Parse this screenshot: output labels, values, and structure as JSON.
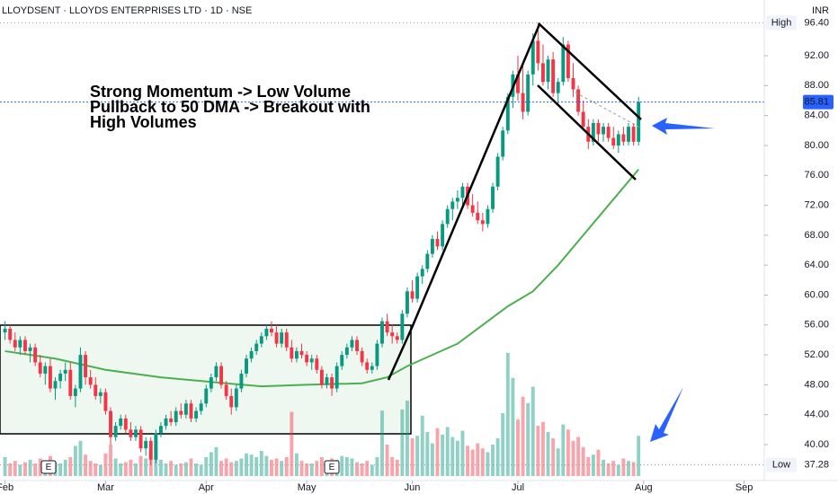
{
  "chart_data": {
    "type": "candlestick",
    "title": "LLOYDSENT · LLOYDS ENTERPRISES LTD · 1D · NSE",
    "currency": "INR",
    "annotation": [
      "Strong Momentum -> Low Volume",
      "Pullback to 50 DMA -> Breakout with",
      "High Volumes"
    ],
    "earnings": [
      "E",
      "E"
    ],
    "up_color": "#089981",
    "down_color": "#f23645",
    "ma_color": "#4caf50",
    "xlim": [
      -1,
      151
    ],
    "xticks": [
      {
        "value": 0,
        "label": "Feb"
      },
      {
        "value": 20,
        "label": "Mar"
      },
      {
        "value": 40,
        "label": "Apr"
      },
      {
        "value": 60,
        "label": "May"
      },
      {
        "value": 81,
        "label": "Jun"
      },
      {
        "value": 102,
        "label": "Jul"
      },
      {
        "value": 127,
        "label": "Aug"
      },
      {
        "value": 147,
        "label": "Sep"
      }
    ],
    "ylim": [
      35.2,
      99.45
    ],
    "yticks": [
      {
        "value": 40,
        "label": "40.00"
      },
      {
        "value": 44,
        "label": "44.00"
      },
      {
        "value": 48,
        "label": "48.00"
      },
      {
        "value": 52,
        "label": "52.00"
      },
      {
        "value": 56,
        "label": "56.00"
      },
      {
        "value": 60,
        "label": "60.00"
      },
      {
        "value": 64,
        "label": "64.00"
      },
      {
        "value": 68,
        "label": "68.00"
      },
      {
        "value": 72,
        "label": "72.00"
      },
      {
        "value": 76,
        "label": "76.00"
      },
      {
        "value": 80,
        "label": "80.00"
      },
      {
        "value": 84,
        "label": "84.00"
      },
      {
        "value": 88,
        "label": "88.00"
      },
      {
        "value": 92,
        "label": "92.00"
      }
    ],
    "grid": false,
    "price_tags": [
      {
        "name": "High",
        "value": 96.4,
        "label": "96.40"
      },
      {
        "value": 85.81,
        "label": "85.81"
      },
      {
        "name": "Low",
        "value": 37.28,
        "label": "37.28"
      }
    ],
    "volume_lim": [
      0,
      10
    ],
    "candles": [
      [
        55,
        56.5,
        54,
        55.5
      ],
      [
        55.5,
        56,
        53.5,
        54
      ],
      [
        54,
        55,
        52.5,
        53
      ],
      [
        53,
        54.5,
        52,
        54
      ],
      [
        54,
        54.5,
        52,
        52.5
      ],
      [
        52.5,
        53.5,
        51,
        53
      ],
      [
        53,
        53.5,
        50.5,
        51
      ],
      [
        51,
        52,
        49,
        49.5
      ],
      [
        49.5,
        51,
        48,
        50.5
      ],
      [
        50.5,
        51.5,
        47,
        47.5
      ],
      [
        47.5,
        49,
        46,
        48.5
      ],
      [
        48.5,
        50,
        47.5,
        49.5
      ],
      [
        49.5,
        51,
        48.5,
        50
      ],
      [
        50,
        51,
        46,
        46.5
      ],
      [
        46.5,
        48,
        45,
        47.5
      ],
      [
        47.5,
        53,
        47,
        52
      ],
      [
        52,
        52.5,
        48,
        49
      ],
      [
        49,
        50,
        47.5,
        48
      ],
      [
        48,
        49,
        46,
        46.5
      ],
      [
        46.5,
        47.5,
        45.5,
        47
      ],
      [
        47,
        47.5,
        44,
        44.5
      ],
      [
        44.5,
        45,
        40,
        41
      ],
      [
        41,
        43,
        40.5,
        42.5
      ],
      [
        42.5,
        44,
        42,
        43.5
      ],
      [
        43.5,
        44,
        41.5,
        42
      ],
      [
        42,
        43,
        40.5,
        41
      ],
      [
        41,
        42.5,
        40.5,
        42
      ],
      [
        42,
        42.5,
        39,
        39.5
      ],
      [
        39.5,
        41,
        38.5,
        40.5
      ],
      [
        40.5,
        41,
        37.28,
        38
      ],
      [
        38,
        42,
        37.5,
        41.5
      ],
      [
        41.5,
        43,
        41,
        42.5
      ],
      [
        42.5,
        44,
        42,
        43.5
      ],
      [
        43.5,
        44.5,
        42.5,
        43
      ],
      [
        43,
        45,
        42.5,
        44.5
      ],
      [
        44.5,
        45.5,
        43.5,
        44
      ],
      [
        44,
        46,
        43.5,
        45.5
      ],
      [
        45.5,
        46,
        43,
        43.5
      ],
      [
        43.5,
        45,
        43,
        44.5
      ],
      [
        44.5,
        46,
        44,
        45.5
      ],
      [
        45.5,
        48,
        45,
        47.5
      ],
      [
        47.5,
        49.5,
        47,
        49
      ],
      [
        49,
        51,
        48.5,
        50.5
      ],
      [
        50.5,
        51,
        47.5,
        48
      ],
      [
        48,
        48.5,
        46,
        46.5
      ],
      [
        46.5,
        47.5,
        44,
        45
      ],
      [
        45,
        48,
        44.5,
        47.5
      ],
      [
        47.5,
        50,
        47,
        49.5
      ],
      [
        49.5,
        52,
        49,
        51.5
      ],
      [
        51.5,
        53,
        51,
        52.5
      ],
      [
        52.5,
        54,
        52,
        53.5
      ],
      [
        53.5,
        55,
        53,
        54.5
      ],
      [
        54.5,
        56,
        54,
        55.5
      ],
      [
        55.5,
        56.5,
        54.5,
        55
      ],
      [
        55,
        56,
        53,
        53.5
      ],
      [
        53.5,
        55.5,
        53,
        55
      ],
      [
        55,
        55.5,
        52.5,
        53
      ],
      [
        53,
        54,
        51,
        51.5
      ],
      [
        51.5,
        53,
        51,
        52.5
      ],
      [
        52.5,
        53.5,
        51.5,
        52
      ],
      [
        52,
        52.5,
        50.5,
        51
      ],
      [
        51,
        52,
        50,
        51.5
      ],
      [
        51.5,
        52,
        49.5,
        50
      ],
      [
        50,
        50.5,
        47.5,
        48
      ],
      [
        48,
        49.5,
        47.5,
        49
      ],
      [
        49,
        49.5,
        46.5,
        47.5
      ],
      [
        47.5,
        51,
        47,
        50.5
      ],
      [
        50.5,
        52.5,
        50,
        52
      ],
      [
        52,
        53.5,
        51.5,
        53
      ],
      [
        53,
        54.5,
        52.5,
        54
      ],
      [
        54,
        54.5,
        52,
        52.5
      ],
      [
        52.5,
        53,
        50.5,
        51
      ],
      [
        51,
        51.5,
        49.5,
        50
      ],
      [
        50,
        51,
        49.5,
        50.5
      ],
      [
        50.5,
        54,
        50,
        53.5
      ],
      [
        53.5,
        57,
        53,
        56.5
      ],
      [
        56.5,
        57.5,
        54.5,
        55
      ],
      [
        55,
        56,
        53.5,
        54.5
      ],
      [
        54.5,
        55,
        53.5,
        54
      ],
      [
        54,
        58,
        53.5,
        57.5
      ],
      [
        57.5,
        61,
        57,
        60.5
      ],
      [
        60.5,
        62,
        59,
        59.5
      ],
      [
        59.5,
        63,
        59,
        62.5
      ],
      [
        62.5,
        64,
        61.5,
        63.5
      ],
      [
        63.5,
        66,
        63,
        65.5
      ],
      [
        65.5,
        68,
        65,
        67.5
      ],
      [
        67.5,
        68.5,
        66,
        66.5
      ],
      [
        66.5,
        70,
        66,
        69.5
      ],
      [
        69.5,
        72,
        69,
        71.5
      ],
      [
        71.5,
        73,
        70,
        72.5
      ],
      [
        72.5,
        74,
        71.5,
        73
      ],
      [
        73,
        75,
        72,
        74.5
      ],
      [
        74.5,
        75,
        71.5,
        72
      ],
      [
        72,
        73.5,
        70.5,
        71
      ],
      [
        71,
        72.5,
        69.5,
        70
      ],
      [
        70,
        71,
        68.5,
        69.5
      ],
      [
        69.5,
        72,
        69,
        71.5
      ],
      [
        71.5,
        75,
        71,
        74.5
      ],
      [
        74.5,
        79,
        74,
        78.5
      ],
      [
        78.5,
        82.5,
        78,
        82
      ],
      [
        82,
        87,
        81.5,
        86.5
      ],
      [
        86.5,
        90,
        85,
        89.5
      ],
      [
        89.5,
        92,
        86,
        87
      ],
      [
        87,
        91,
        83.5,
        84.5
      ],
      [
        84.5,
        90,
        84,
        89.5
      ],
      [
        89.5,
        95,
        88,
        94
      ],
      [
        94,
        96.4,
        90,
        91
      ],
      [
        91,
        93.5,
        88,
        88.5
      ],
      [
        88.5,
        92,
        87.5,
        91.5
      ],
      [
        91.5,
        92.5,
        86.5,
        87
      ],
      [
        87,
        89,
        85.5,
        88.5
      ],
      [
        88.5,
        94.5,
        88,
        93.5
      ],
      [
        93.5,
        94,
        88.5,
        89
      ],
      [
        89,
        91,
        86.5,
        87.5
      ],
      [
        87.5,
        88,
        84,
        84.5
      ],
      [
        84.5,
        86,
        82,
        82.5
      ],
      [
        82.5,
        83.5,
        79.5,
        80.5
      ],
      [
        80.5,
        83.5,
        80,
        83
      ],
      [
        83,
        83.5,
        80.5,
        81.5
      ],
      [
        81.5,
        83,
        80.5,
        82.5
      ],
      [
        82.5,
        83,
        80.5,
        81
      ],
      [
        81,
        82.5,
        79.5,
        80
      ],
      [
        80,
        82,
        79,
        81.5
      ],
      [
        81.5,
        82.5,
        80,
        80.5
      ],
      [
        80.5,
        83,
        80,
        82.5
      ],
      [
        82.5,
        83,
        80,
        80.5
      ],
      [
        80.5,
        86.5,
        80,
        85.81
      ]
    ],
    "volume": [
      1.5,
      1,
      1.2,
      0.9,
      1.1,
      1.3,
      1.0,
      1.4,
      1.2,
      1.6,
      1.1,
      1.0,
      1.3,
      1.5,
      2.4,
      2.8,
      1.7,
      1.2,
      1.0,
      0.9,
      1.8,
      2.5,
      1.4,
      1.0,
      1.1,
      1.3,
      1.0,
      1.6,
      1.4,
      2.0,
      2.7,
      1.3,
      1.0,
      1.2,
      0.9,
      1.0,
      1.1,
      1.4,
      1.0,
      0.9,
      1.5,
      1.9,
      2.3,
      1.2,
      1.4,
      1.1,
      1.2,
      1.4,
      1.8,
      1.7,
      1.5,
      2.0,
      1.6,
      1.3,
      1.4,
      1.2,
      1.5,
      5.1,
      1.8,
      1.2,
      1.0,
      1.0,
      1.2,
      1.5,
      1.1,
      1.4,
      1.3,
      1.6,
      1.5,
      1.4,
      1.1,
      1.0,
      1.2,
      0.9,
      1.5,
      5.2,
      2.5,
      1.5,
      1.3,
      5.3,
      6.0,
      3.0,
      3.2,
      4.8,
      3.5,
      2.6,
      3.8,
      3.3,
      3.9,
      3.1,
      2.8,
      3.6,
      2.4,
      2.1,
      2.6,
      2.2,
      1.9,
      2.5,
      3.0,
      5.0,
      9.8,
      7.8,
      4.5,
      6.3,
      5.8,
      7.1,
      4.0,
      4.3,
      3.5,
      3.0,
      2.2,
      4.1,
      3.7,
      2.8,
      3.1,
      2.3,
      1.5,
      1.7,
      2.1,
      1.3,
      1.0,
      1.2,
      0.9,
      1.4,
      1.2,
      1.1,
      3.2
    ],
    "ma": {
      "x": [
        0,
        10,
        20,
        31,
        44,
        51,
        60,
        71,
        76,
        80,
        85,
        90,
        95,
        100,
        105,
        110,
        115,
        120,
        126
      ],
      "values": [
        52.5,
        51.5,
        50,
        49,
        48.2,
        47.8,
        48,
        48.2,
        49,
        50.5,
        52,
        53.5,
        56,
        58.5,
        60.5,
        64,
        68,
        72,
        76.8
      ]
    }
  }
}
